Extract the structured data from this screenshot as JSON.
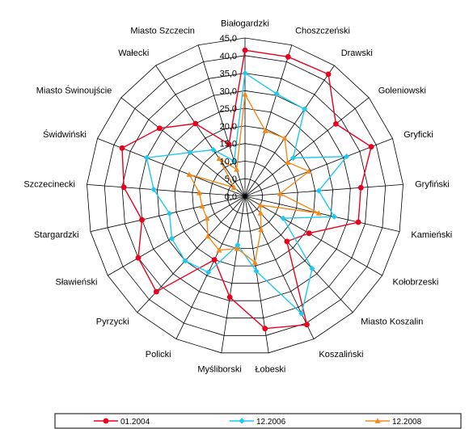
{
  "chart_data": {
    "type": "radar",
    "categories": [
      "Białogardzki",
      "Choszczeński",
      "Drawski",
      "Goleniowski",
      "Gryficki",
      "Gryfiński",
      "Kamieński",
      "Kołobrzeski",
      "Miasto Koszalin",
      "Koszaliński",
      "Łobeski",
      "Myśliborski",
      "Policki",
      "Pyrzycki",
      "Sławieński",
      "Stargardzki",
      "Szczecinecki",
      "Świdwiński",
      "Miasto Świnoujście",
      "Wałecki",
      "Miasto Szczecin"
    ],
    "rlim": [
      0,
      45
    ],
    "ticks": [
      "0,0",
      "5,0",
      "10,0",
      "15,0",
      "20,0",
      "25,0",
      "30,0",
      "35,0",
      "40,0",
      "45,0"
    ],
    "tick_values": [
      0,
      5,
      10,
      15,
      20,
      25,
      30,
      35,
      40,
      45
    ],
    "grid": true,
    "legend_position": "bottom",
    "series": [
      {
        "name": "01.2004",
        "color": "#e8001c",
        "marker": "circle",
        "values": [
          41.5,
          41.5,
          42.0,
          33.0,
          38.5,
          33.0,
          33.0,
          21.0,
          17.5,
          40.5,
          38.0,
          29.0,
          20.0,
          37.0,
          35.0,
          30.0,
          34.5,
          37.5,
          31.0,
          25.0,
          15.5
        ]
      },
      {
        "name": "12.2006",
        "color": "#1ec8ef",
        "marker": "diamond",
        "values": [
          35.0,
          30.5,
          30.0,
          17.5,
          31.0,
          21.0,
          26.0,
          12.5,
          28.0,
          37.0,
          21.5,
          14.0,
          24.0,
          25.0,
          24.0,
          22.0,
          26.0,
          30.0,
          20.0,
          16.0,
          10.5
        ]
      },
      {
        "name": "12.2008",
        "color": "#f28a1b",
        "marker": "triangle",
        "values": [
          29.0,
          19.5,
          20.0,
          15.5,
          19.5,
          10.0,
          21.5,
          5.0,
          6.5,
          10.5,
          19.0,
          15.0,
          17.0,
          15.5,
          12.5,
          12.5,
          13.0,
          17.0,
          4.0,
          13.0,
          8.0
        ]
      }
    ]
  }
}
